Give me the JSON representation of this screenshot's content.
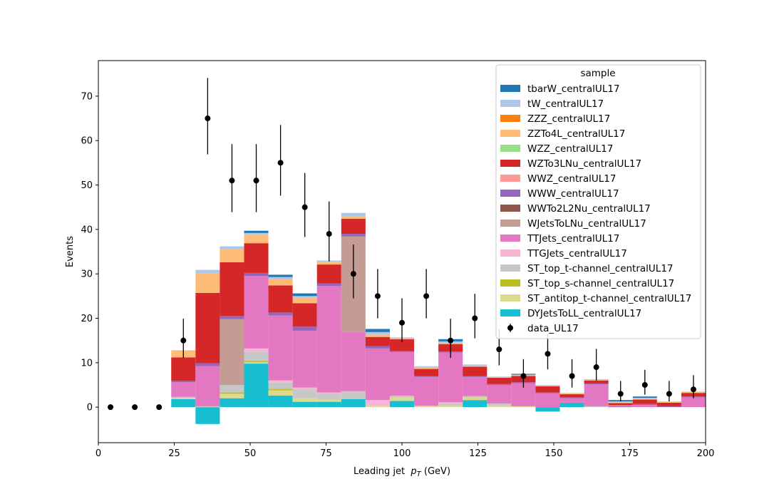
{
  "chart_data": {
    "type": "bar",
    "stacked": true,
    "xlabel_text": "Leading jet  ",
    "xlabel_symbol": "p",
    "xlabel_sub": "T",
    "xlabel_unit": " (GeV)",
    "ylabel": "Events",
    "xlim": [
      0,
      200
    ],
    "ylim": [
      -8,
      78
    ],
    "xticks": [
      0,
      25,
      50,
      75,
      100,
      125,
      150,
      175,
      200
    ],
    "yticks": [
      0,
      10,
      20,
      30,
      40,
      50,
      60,
      70
    ],
    "grid": false,
    "legend_title": "sample",
    "legend_placement": "top-right",
    "bins": [
      [
        24,
        32
      ],
      [
        32,
        40
      ],
      [
        40,
        48
      ],
      [
        48,
        56
      ],
      [
        56,
        64
      ],
      [
        64,
        72
      ],
      [
        72,
        80
      ],
      [
        80,
        88
      ],
      [
        88,
        96
      ],
      [
        96,
        104
      ],
      [
        104,
        112
      ],
      [
        112,
        120
      ],
      [
        120,
        128
      ],
      [
        128,
        136
      ],
      [
        136,
        144
      ],
      [
        144,
        152
      ],
      [
        152,
        160
      ],
      [
        160,
        168
      ],
      [
        168,
        176
      ],
      [
        176,
        184
      ],
      [
        184,
        192
      ],
      [
        192,
        200
      ]
    ],
    "series": [
      {
        "name": "DYJetsToLL_centralUL17",
        "color": "#17becf",
        "values": [
          1.8,
          -3.8,
          2.0,
          9.8,
          2.6,
          1.2,
          1.2,
          1.8,
          0.0,
          1.4,
          0.0,
          0.0,
          1.6,
          0.0,
          0.0,
          -1.0,
          1.0,
          0.0,
          0.0,
          0.0,
          0.0,
          0.0
        ]
      },
      {
        "name": "ST_antitop_t-channel_centralUL17",
        "color": "#dbdb8d",
        "values": [
          0.2,
          0.0,
          1.0,
          0.3,
          1.2,
          0.8,
          0.5,
          0.0,
          0.3,
          0.8,
          0.3,
          0.3,
          0.6,
          0.3,
          0.2,
          0.0,
          0.0,
          0.0,
          0.0,
          0.0,
          0.0,
          0.0
        ]
      },
      {
        "name": "ST_top_s-channel_centralUL17",
        "color": "#bcbd22",
        "values": [
          0.0,
          0.0,
          0.3,
          0.3,
          0.3,
          0.0,
          0.0,
          0.0,
          0.0,
          0.0,
          0.0,
          0.0,
          0.0,
          0.0,
          0.0,
          0.0,
          0.0,
          0.0,
          0.0,
          0.0,
          0.0,
          0.0
        ]
      },
      {
        "name": "ST_top_t-channel_centralUL17",
        "color": "#c7c7c7",
        "values": [
          0.3,
          0.2,
          1.7,
          2.0,
          1.5,
          2.0,
          1.3,
          1.8,
          0.0,
          0.4,
          0.0,
          0.5,
          0.3,
          0.5,
          0.0,
          0.0,
          0.0,
          0.2,
          0.0,
          0.0,
          0.0,
          0.0
        ]
      },
      {
        "name": "TTGJets_centralUL17",
        "color": "#f7b6d2",
        "values": [
          0.0,
          0.0,
          0.0,
          0.8,
          0.4,
          0.4,
          0.3,
          0.0,
          1.3,
          0.0,
          0.0,
          0.3,
          0.0,
          0.0,
          0.0,
          0.0,
          0.0,
          0.0,
          0.0,
          0.0,
          0.0,
          0.0
        ]
      },
      {
        "name": "TTJets_centralUL17",
        "color": "#e377c2",
        "values": [
          3.3,
          9.0,
          0.0,
          16.3,
          14.6,
          12.8,
          24.0,
          13.4,
          11.6,
          9.8,
          6.5,
          11.2,
          4.3,
          4.2,
          5.2,
          3.1,
          1.0,
          4.9,
          0.0,
          0.5,
          0.0,
          2.2
        ]
      },
      {
        "name": "WJetsToLNu_centralUL17",
        "color": "#c49c94",
        "values": [
          0.0,
          0.0,
          14.8,
          0.0,
          0.0,
          0.0,
          0.0,
          21.4,
          0.0,
          0.0,
          0.0,
          0.0,
          0.0,
          0.0,
          0.0,
          0.0,
          0.0,
          0.0,
          0.0,
          0.0,
          0.0,
          0.0
        ]
      },
      {
        "name": "WWTo2L2Nu_centralUL17",
        "color": "#8c564b",
        "values": [
          0.0,
          0.0,
          0.0,
          0.0,
          0.0,
          0.0,
          0.0,
          0.0,
          0.0,
          0.0,
          0.0,
          0.0,
          0.0,
          0.0,
          0.0,
          0.0,
          0.0,
          0.0,
          0.0,
          0.0,
          0.0,
          0.0
        ]
      },
      {
        "name": "WWW_centralUL17",
        "color": "#9467bd",
        "values": [
          0.3,
          0.7,
          0.7,
          0.7,
          0.7,
          0.9,
          0.5,
          0.6,
          0.5,
          0.2,
          0.2,
          0.2,
          0.2,
          0.2,
          0.2,
          0.2,
          0.2,
          0.2,
          0.2,
          0.2,
          0.2,
          0.2
        ]
      },
      {
        "name": "WWZ_centralUL17",
        "color": "#ff9896",
        "values": [
          0.0,
          0.0,
          0.0,
          0.0,
          0.0,
          0.0,
          0.0,
          0.0,
          0.0,
          0.0,
          0.0,
          0.0,
          0.0,
          0.0,
          0.0,
          0.0,
          0.0,
          0.0,
          0.2,
          0.0,
          0.0,
          0.0
        ]
      },
      {
        "name": "WZTo3LNu_centralUL17",
        "color": "#d62728",
        "values": [
          5.3,
          15.8,
          12.1,
          6.7,
          6.1,
          5.3,
          4.3,
          3.4,
          2.1,
          2.7,
          1.6,
          1.7,
          2.1,
          1.4,
          1.4,
          1.4,
          0.7,
          0.7,
          0.5,
          1.0,
          0.8,
          0.8
        ]
      },
      {
        "name": "WZZ_centralUL17",
        "color": "#98df8a",
        "values": [
          0.0,
          0.0,
          0.0,
          0.0,
          0.0,
          0.0,
          0.0,
          0.0,
          0.0,
          0.0,
          0.0,
          0.0,
          0.0,
          0.0,
          0.0,
          0.0,
          0.0,
          0.0,
          0.0,
          0.0,
          0.0,
          0.0
        ]
      },
      {
        "name": "ZZTo4L_centralUL17",
        "color": "#ffbb78",
        "values": [
          1.6,
          4.5,
          2.9,
          2.0,
          1.5,
          1.3,
          0.6,
          0.6,
          0.6,
          0.2,
          0.3,
          0.3,
          0.2,
          0.2,
          0.2,
          0.2,
          0.2,
          0.2,
          0.2,
          0.2,
          0.2,
          0.2
        ]
      },
      {
        "name": "ZZZ_centralUL17",
        "color": "#ff7f0e",
        "values": [
          0.0,
          0.0,
          0.0,
          0.0,
          0.0,
          0.0,
          0.0,
          0.0,
          0.0,
          0.0,
          0.0,
          0.0,
          0.0,
          0.0,
          0.0,
          0.0,
          0.0,
          0.0,
          0.0,
          0.0,
          0.0,
          0.0
        ]
      },
      {
        "name": "tW_centralUL17",
        "color": "#aec7e8",
        "values": [
          0.0,
          0.7,
          0.7,
          0.3,
          0.4,
          0.3,
          0.3,
          0.7,
          0.5,
          0.2,
          0.3,
          0.3,
          0.3,
          0.1,
          0.1,
          0.1,
          0.1,
          0.1,
          0.2,
          0.2,
          0.1,
          0.1
        ]
      },
      {
        "name": "tbarW_centralUL17",
        "color": "#1f77b4",
        "values": [
          0.0,
          0.0,
          0.0,
          0.5,
          0.5,
          0.6,
          0.0,
          0.0,
          0.7,
          0.0,
          0.0,
          0.5,
          0.0,
          0.0,
          0.2,
          0.0,
          0.0,
          0.0,
          0.3,
          0.3,
          0.0,
          0.0
        ]
      }
    ],
    "legend_order": [
      "tbarW_centralUL17",
      "tW_centralUL17",
      "ZZZ_centralUL17",
      "ZZTo4L_centralUL17",
      "WZZ_centralUL17",
      "WZTo3LNu_centralUL17",
      "WWZ_centralUL17",
      "WWW_centralUL17",
      "WWTo2L2Nu_centralUL17",
      "WJetsToLNu_centralUL17",
      "TTJets_centralUL17",
      "TTGJets_centralUL17",
      "ST_top_t-channel_centralUL17",
      "ST_top_s-channel_centralUL17",
      "ST_antitop_t-channel_centralUL17",
      "DYJetsToLL_centralUL17"
    ],
    "data_series": {
      "name": "data_UL17",
      "color": "#000000",
      "x": [
        4,
        12,
        20,
        28,
        36,
        44,
        52,
        60,
        68,
        76,
        84,
        92,
        100,
        108,
        116,
        124,
        132,
        140,
        148,
        156,
        164,
        172,
        180,
        188,
        196
      ],
      "y": [
        0,
        0,
        0,
        15,
        65,
        51,
        51,
        55,
        45,
        39,
        30,
        25,
        19,
        25,
        15,
        20,
        13,
        7,
        12,
        7,
        9,
        3,
        5,
        3,
        4
      ],
      "yerr_low": [
        0,
        0,
        0,
        3.9,
        8.1,
        7.1,
        7.1,
        7.4,
        6.7,
        6.2,
        5.5,
        5.0,
        4.4,
        5.0,
        3.9,
        4.5,
        3.6,
        2.6,
        3.5,
        2.6,
        3.0,
        1.7,
        2.2,
        1.7,
        2.0
      ],
      "yerr_high": [
        0,
        0,
        0,
        4.9,
        9.1,
        8.2,
        8.2,
        8.5,
        7.7,
        7.3,
        6.6,
        6.1,
        5.5,
        6.1,
        4.9,
        5.5,
        4.6,
        3.8,
        4.5,
        3.8,
        4.1,
        2.9,
        3.4,
        2.9,
        3.2
      ]
    }
  }
}
